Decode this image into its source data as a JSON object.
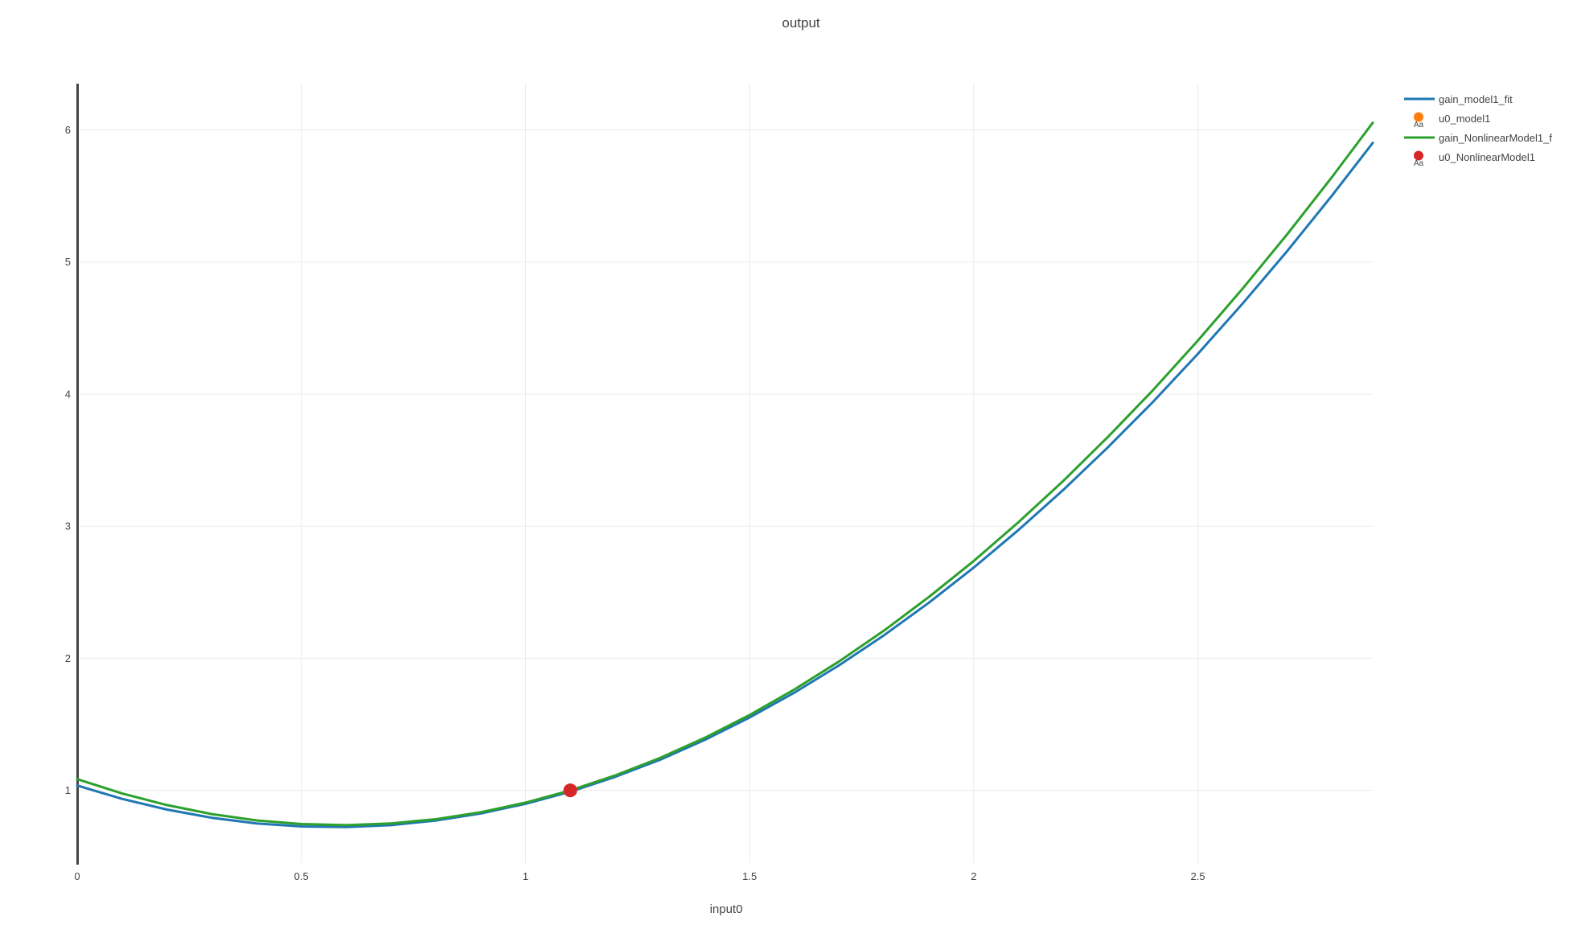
{
  "header": {
    "title": "output"
  },
  "axes": {
    "x_title": "input0"
  },
  "colors": {
    "blue_line": "#1f77b4",
    "orange_marker": "#ff7f0e",
    "green_line": "#2ca02c",
    "red_marker": "#d62728",
    "grid": "#ebebeb",
    "axis_line": "#444444",
    "text": "#444444"
  },
  "chart_data": {
    "type": "line",
    "title": "output",
    "xlabel": "input0",
    "ylabel": "",
    "grid": true,
    "legend_position": "right",
    "xlim": [
      0,
      2.89
    ],
    "ylim": [
      0.45,
      6.35
    ],
    "x_ticks": [
      {
        "value": 0,
        "label": "0"
      },
      {
        "value": 0.5,
        "label": "0.5"
      },
      {
        "value": 1,
        "label": "1"
      },
      {
        "value": 1.5,
        "label": "1.5"
      },
      {
        "value": 2,
        "label": "2"
      },
      {
        "value": 2.5,
        "label": "2.5"
      }
    ],
    "y_ticks": [
      {
        "value": 1,
        "label": "1"
      },
      {
        "value": 2,
        "label": "2"
      },
      {
        "value": 3,
        "label": "3"
      },
      {
        "value": 4,
        "label": "4"
      },
      {
        "value": 5,
        "label": "5"
      },
      {
        "value": 6,
        "label": "6"
      }
    ],
    "series": [
      {
        "name": "gain_model1_fit",
        "type": "line",
        "color": "#1f77b4",
        "points": [
          [
            0,
            1.037
          ],
          [
            0.1,
            0.936
          ],
          [
            0.2,
            0.855
          ],
          [
            0.3,
            0.793
          ],
          [
            0.4,
            0.75
          ],
          [
            0.5,
            0.727
          ],
          [
            0.6,
            0.722
          ],
          [
            0.7,
            0.737
          ],
          [
            0.8,
            0.772
          ],
          [
            0.9,
            0.825
          ],
          [
            1.0,
            0.898
          ],
          [
            1.1,
            0.99
          ],
          [
            1.2,
            1.102
          ],
          [
            1.3,
            1.232
          ],
          [
            1.4,
            1.382
          ],
          [
            1.5,
            1.552
          ],
          [
            1.6,
            1.74
          ],
          [
            1.7,
            1.948
          ],
          [
            1.8,
            2.175
          ],
          [
            1.9,
            2.421
          ],
          [
            2.0,
            2.687
          ],
          [
            2.1,
            2.972
          ],
          [
            2.2,
            3.276
          ],
          [
            2.3,
            3.6
          ],
          [
            2.4,
            3.942
          ],
          [
            2.5,
            4.305
          ],
          [
            2.6,
            4.686
          ],
          [
            2.7,
            5.086
          ],
          [
            2.8,
            5.506
          ],
          [
            2.89,
            5.901
          ]
        ]
      },
      {
        "name": "u0_model1",
        "type": "scatter",
        "color": "#ff7f0e",
        "legend_sample_text": "Aa",
        "points": [
          [
            1.1,
            1.0
          ]
        ]
      },
      {
        "name": "gain_NonlinearModel1_f",
        "type": "line",
        "color": "#2ca02c",
        "points": [
          [
            0,
            1.085
          ],
          [
            0.1,
            0.977
          ],
          [
            0.2,
            0.889
          ],
          [
            0.3,
            0.821
          ],
          [
            0.4,
            0.773
          ],
          [
            0.5,
            0.745
          ],
          [
            0.6,
            0.737
          ],
          [
            0.7,
            0.75
          ],
          [
            0.8,
            0.782
          ],
          [
            0.9,
            0.835
          ],
          [
            1.0,
            0.907
          ],
          [
            1.1,
            1.0
          ],
          [
            1.2,
            1.113
          ],
          [
            1.3,
            1.245
          ],
          [
            1.4,
            1.398
          ],
          [
            1.5,
            1.571
          ],
          [
            1.6,
            1.764
          ],
          [
            1.7,
            1.977
          ],
          [
            1.8,
            2.21
          ],
          [
            1.9,
            2.464
          ],
          [
            2.0,
            2.737
          ],
          [
            2.1,
            3.031
          ],
          [
            2.2,
            3.344
          ],
          [
            2.3,
            3.678
          ],
          [
            2.4,
            4.031
          ],
          [
            2.5,
            4.405
          ],
          [
            2.6,
            4.799
          ],
          [
            2.7,
            5.213
          ],
          [
            2.8,
            5.647
          ],
          [
            2.89,
            6.054
          ]
        ]
      },
      {
        "name": "u0_NonlinearModel1",
        "type": "scatter",
        "color": "#d62728",
        "legend_sample_text": "Aa",
        "points": [
          [
            1.1,
            1.0
          ]
        ]
      }
    ]
  }
}
